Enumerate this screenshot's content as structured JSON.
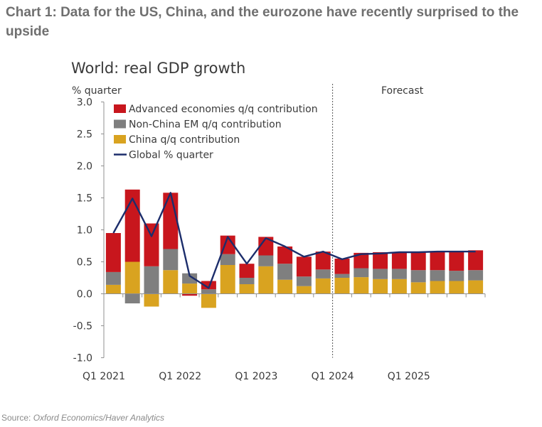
{
  "heading": "Chart 1: Data for the US, China, and the eurozone have recently surprised to the upside",
  "source": {
    "label": "Source:",
    "name": "Oxford Economics/Haver Analytics"
  },
  "colors": {
    "advanced": "#c8161d",
    "em": "#7f7f7f",
    "china": "#d9a320",
    "global": "#1c2d6b",
    "axis": "#909090"
  },
  "chart_data": {
    "type": "bar",
    "stacked": true,
    "title": "World: real GDP growth",
    "ylabel": "% quarter",
    "annotation": "Forecast",
    "ylim": [
      -1.0,
      3.0
    ],
    "yticks": [
      "3.0",
      "2.5",
      "2.0",
      "1.5",
      "1.0",
      "0.5",
      "0.0",
      "-0.5",
      "-1.0"
    ],
    "xtick_labels": [
      "Q1 2021",
      "Q1 2022",
      "Q1 2023",
      "Q1 2024",
      "Q1 2025"
    ],
    "categories": [
      "Q1 2021",
      "Q2 2021",
      "Q3 2021",
      "Q4 2021",
      "Q1 2022",
      "Q2 2022",
      "Q3 2022",
      "Q4 2022",
      "Q1 2023",
      "Q2 2023",
      "Q3 2023",
      "Q4 2023",
      "Q1 2024",
      "Q2 2024",
      "Q3 2024",
      "Q4 2024",
      "Q1 2025",
      "Q2 2025",
      "Q3 2025",
      "Q4 2025"
    ],
    "forecast_start": "Q1 2024",
    "legend": [
      "Advanced economies q/q contribution",
      "Non-China EM q/q contribution",
      "China q/q contribution",
      "Global % quarter"
    ],
    "legend_position": "top-left",
    "series": [
      {
        "name": "Advanced economies q/q contribution",
        "kind": "bar",
        "values": [
          0.61,
          1.13,
          0.67,
          0.88,
          -0.03,
          0.13,
          0.29,
          0.22,
          0.29,
          0.27,
          0.31,
          0.28,
          0.24,
          0.24,
          0.26,
          0.26,
          0.28,
          0.29,
          0.3,
          0.31
        ]
      },
      {
        "name": "Non-China EM q/q contribution",
        "kind": "bar",
        "values": [
          0.2,
          -0.15,
          0.43,
          0.33,
          0.16,
          0.07,
          0.17,
          0.1,
          0.17,
          0.25,
          0.15,
          0.14,
          0.06,
          0.14,
          0.16,
          0.16,
          0.19,
          0.17,
          0.16,
          0.16
        ]
      },
      {
        "name": "China q/q contribution",
        "kind": "bar",
        "values": [
          0.14,
          0.5,
          -0.2,
          0.37,
          0.16,
          -0.22,
          0.45,
          0.15,
          0.43,
          0.22,
          0.12,
          0.24,
          0.25,
          0.26,
          0.23,
          0.23,
          0.18,
          0.2,
          0.2,
          0.21
        ]
      },
      {
        "name": "Global % quarter",
        "kind": "line",
        "values": [
          0.95,
          1.49,
          0.9,
          1.58,
          0.28,
          0.09,
          0.89,
          0.47,
          0.87,
          0.74,
          0.58,
          0.66,
          0.54,
          0.62,
          0.63,
          0.65,
          0.65,
          0.66,
          0.66,
          0.66
        ]
      }
    ],
    "grid": false
  }
}
